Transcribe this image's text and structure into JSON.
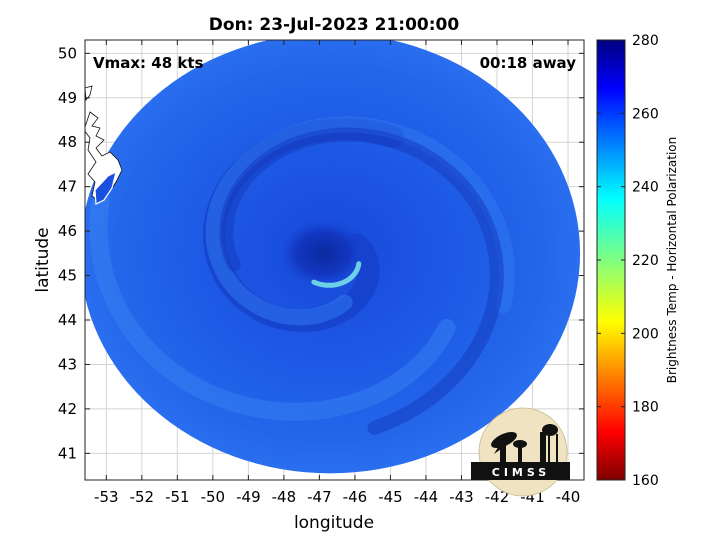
{
  "chart_data": {
    "type": "heatmap",
    "title": "Don: 23-Jul-2023 21:00:00",
    "xlabel": "longitude",
    "ylabel": "latitude",
    "xlim": [
      -53.6,
      -39.55
    ],
    "ylim": [
      40.4,
      50.3
    ],
    "x_ticks": [
      "-53",
      "-52",
      "-51",
      "-50",
      "-49",
      "-48",
      "-47",
      "-46",
      "-45",
      "-44",
      "-43",
      "-42",
      "-41",
      "-40"
    ],
    "y_ticks": [
      "41",
      "42",
      "43",
      "44",
      "45",
      "46",
      "47",
      "48",
      "49",
      "50"
    ],
    "grid": true,
    "annotations": {
      "vmax": "Vmax: 48 kts",
      "away": "00:18 away"
    },
    "storm_center": {
      "lon": -46.9,
      "lat": 45.5
    },
    "swath_center": {
      "lon": -46.7,
      "lat": 45.5
    },
    "colorbar": {
      "label": "Brightness Temp - Horizontal Polarization",
      "range": [
        160,
        280
      ],
      "ticks": [
        "280",
        "260",
        "240",
        "220",
        "200",
        "180",
        "160"
      ],
      "colormap": "jet"
    },
    "logo_text": "CIMSS"
  }
}
